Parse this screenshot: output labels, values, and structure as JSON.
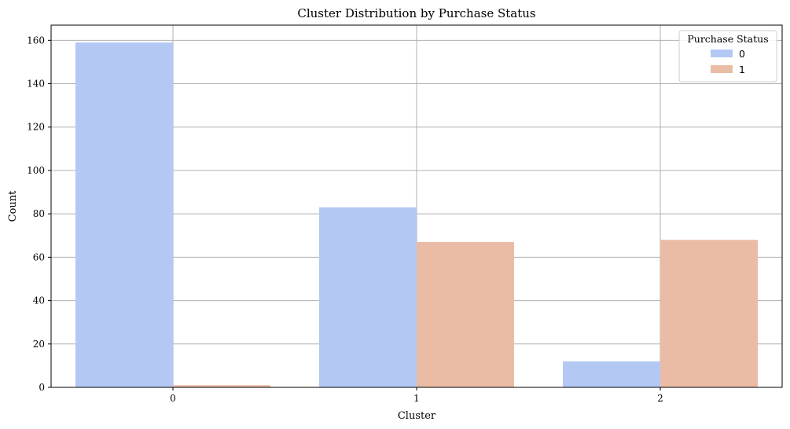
{
  "chart_data": {
    "type": "bar",
    "title": "Cluster Distribution by Purchase Status",
    "xlabel": "Cluster",
    "ylabel": "Count",
    "categories": [
      "0",
      "1",
      "2"
    ],
    "series": [
      {
        "name": "0",
        "values": [
          159,
          83,
          12
        ],
        "color": "#b3c9f3"
      },
      {
        "name": "1",
        "values": [
          1,
          67,
          68
        ],
        "color": "#ebbca5"
      }
    ],
    "ylim": [
      0,
      167
    ],
    "yticks": [
      0,
      20,
      40,
      60,
      80,
      100,
      120,
      140,
      160
    ],
    "grid": true,
    "legend": {
      "title": "Purchase Status",
      "placement": "top-right"
    }
  }
}
